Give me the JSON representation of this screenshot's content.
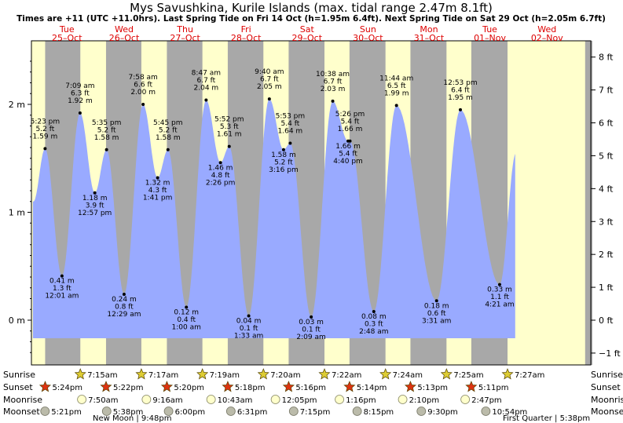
{
  "header": {
    "title": "Mys Savushkina, Kurile Islands (max. tidal range 2.47m 8.1ft)",
    "subtitle": "Times are +11 (UTC +11.0hrs). Last Spring Tide on Fri 14 Oct (h=1.95m 6.4ft). Next Spring Tide on Sat 29 Oct (h=2.05m 6.7ft)"
  },
  "days": [
    {
      "name": "Tue",
      "date": "25–Oct",
      "noon": 26
    },
    {
      "name": "Wed",
      "date": "26–Oct",
      "noon": 48.5
    },
    {
      "name": "Thu",
      "date": "27–Oct",
      "noon": 72.5
    },
    {
      "name": "Fri",
      "date": "28–Oct",
      "noon": 96.5
    },
    {
      "name": "Sat",
      "date": "29–Oct",
      "noon": 120.5
    },
    {
      "name": "Sun",
      "date": "30–Oct",
      "noon": 144.5
    },
    {
      "name": "Mon",
      "date": "31–Oct",
      "noon": 168.5
    },
    {
      "name": "Tue",
      "date": "01–Nov",
      "noon": 192.5
    },
    {
      "name": "Wed",
      "date": "02–Nov",
      "noon": 215
    }
  ],
  "chart_data": {
    "type": "area",
    "x_unit": "hours since 00:00 25-Oct",
    "y_unit": "m",
    "ylim": [
      -0.35,
      2.55
    ],
    "xlim": [
      12,
      220
    ],
    "left_ticks": [
      {
        "v": 0,
        "label": "0 m"
      },
      {
        "v": 1,
        "label": "1 m"
      },
      {
        "v": 2,
        "label": "2 m"
      }
    ],
    "right_ticks": [
      {
        "v": -0.3048,
        "label": "−1 ft"
      },
      {
        "v": 0,
        "label": "0 ft"
      },
      {
        "v": 0.3048,
        "label": "1 ft"
      },
      {
        "v": 0.6096,
        "label": "2 ft"
      },
      {
        "v": 0.9144,
        "label": "3 ft"
      },
      {
        "v": 1.2192,
        "label": "4 ft"
      },
      {
        "v": 1.524,
        "label": "5 ft"
      },
      {
        "v": 1.8288,
        "label": "6 ft"
      },
      {
        "v": 2.1336,
        "label": "7 ft"
      },
      {
        "v": 2.4384,
        "label": "8 ft"
      }
    ],
    "tides": [
      {
        "t": 17.38,
        "h": 1.59,
        "time": "5:23 pm",
        "m": "1.59 m",
        "ft": "5.2 ft",
        "type": "high"
      },
      {
        "t": 24.02,
        "h": 0.41,
        "time": "12:01 am",
        "m": "0.41 m",
        "ft": "1.3 ft",
        "type": "low"
      },
      {
        "t": 31.15,
        "h": 1.92,
        "time": "7:09 am",
        "m": "1.92 m",
        "ft": "6.3 ft",
        "type": "high"
      },
      {
        "t": 36.95,
        "h": 1.18,
        "time": "12:57 pm",
        "m": "1.18 m",
        "ft": "3.9 ft",
        "type": "low"
      },
      {
        "t": 41.58,
        "h": 1.58,
        "time": "5:35 pm",
        "m": "1.58 m",
        "ft": "5.2 ft",
        "type": "high"
      },
      {
        "t": 48.48,
        "h": 0.24,
        "time": "12:29 am",
        "m": "0.24 m",
        "ft": "0.8 ft",
        "type": "low"
      },
      {
        "t": 55.97,
        "h": 2.0,
        "time": "7:58 am",
        "m": "2.00 m",
        "ft": "6.6 ft",
        "type": "high"
      },
      {
        "t": 61.68,
        "h": 1.32,
        "time": "1:41 pm",
        "m": "1.32 m",
        "ft": "4.3 ft",
        "type": "low"
      },
      {
        "t": 65.75,
        "h": 1.58,
        "time": "5:45 pm",
        "m": "1.58 m",
        "ft": "5.2 ft",
        "type": "high"
      },
      {
        "t": 73.0,
        "h": 0.12,
        "time": "1:00 am",
        "m": "0.12 m",
        "ft": "0.4 ft",
        "type": "low"
      },
      {
        "t": 80.78,
        "h": 2.04,
        "time": "8:47 am",
        "m": "2.04 m",
        "ft": "6.7 ft",
        "type": "high"
      },
      {
        "t": 86.43,
        "h": 1.46,
        "time": "2:26 pm",
        "m": "1.46 m",
        "ft": "4.8 ft",
        "type": "low"
      },
      {
        "t": 89.87,
        "h": 1.61,
        "time": "5:52 pm",
        "m": "1.61 m",
        "ft": "5.3 ft",
        "type": "high"
      },
      {
        "t": 97.55,
        "h": 0.04,
        "time": "1:33 am",
        "m": "0.04 m",
        "ft": "0.1 ft",
        "type": "low"
      },
      {
        "t": 105.67,
        "h": 2.05,
        "time": "9:40 am",
        "m": "2.05 m",
        "ft": "6.7 ft",
        "type": "high"
      },
      {
        "t": 111.27,
        "h": 1.58,
        "time": "3:16 pm",
        "m": "1.58 m",
        "ft": "5.2 ft",
        "type": "low"
      },
      {
        "t": 113.88,
        "h": 1.64,
        "time": "5:53 pm",
        "m": "1.64 m",
        "ft": "5.4 ft",
        "type": "high"
      },
      {
        "t": 122.15,
        "h": 0.03,
        "time": "2:09 am",
        "m": "0.03 m",
        "ft": "0.1 ft",
        "type": "low"
      },
      {
        "t": 130.63,
        "h": 2.03,
        "time": "10:38 am",
        "m": "2.03 m",
        "ft": "6.7 ft",
        "type": "high"
      },
      {
        "t": 136.67,
        "h": 1.66,
        "time": "4:40 pm",
        "m": "1.66 m",
        "ft": "5.4 ft",
        "type": "low"
      },
      {
        "t": 137.43,
        "h": 1.66,
        "time": "5:26 pm",
        "m": "1.66 m",
        "ft": "5.4 ft",
        "type": "high"
      },
      {
        "t": 146.8,
        "h": 0.08,
        "time": "2:48 am",
        "m": "0.08 m",
        "ft": "0.3 ft",
        "type": "low"
      },
      {
        "t": 155.73,
        "h": 1.99,
        "time": "11:44 am",
        "m": "1.99 m",
        "ft": "6.5 ft",
        "type": "high"
      },
      {
        "t": 171.52,
        "h": 0.18,
        "time": "3:31 am",
        "m": "0.18 m",
        "ft": "0.6 ft",
        "type": "low"
      },
      {
        "t": 180.88,
        "h": 1.95,
        "time": "12:53 pm",
        "m": "1.95 m",
        "ft": "6.4 ft",
        "type": "high"
      },
      {
        "t": 196.35,
        "h": 0.33,
        "time": "4:21 am",
        "m": "0.33 m",
        "ft": "1.1 ft",
        "type": "low"
      }
    ]
  },
  "astro": {
    "row_labels": [
      "Sunrise",
      "Sunset",
      "Moonrise",
      "Moonset"
    ],
    "sunrise": [
      {
        "t": 31.25,
        "label": "7:15am"
      },
      {
        "t": 55.28,
        "label": "7:17am"
      },
      {
        "t": 79.32,
        "label": "7:19am"
      },
      {
        "t": 103.33,
        "label": "7:20am"
      },
      {
        "t": 127.37,
        "label": "7:22am"
      },
      {
        "t": 151.4,
        "label": "7:24am"
      },
      {
        "t": 175.42,
        "label": "7:25am"
      },
      {
        "t": 199.45,
        "label": "7:27am"
      }
    ],
    "sunset": [
      {
        "t": 17.4,
        "label": "5:24pm"
      },
      {
        "t": 41.37,
        "label": "5:22pm"
      },
      {
        "t": 65.33,
        "label": "5:20pm"
      },
      {
        "t": 89.3,
        "label": "5:18pm"
      },
      {
        "t": 113.27,
        "label": "5:16pm"
      },
      {
        "t": 137.23,
        "label": "5:14pm"
      },
      {
        "t": 161.22,
        "label": "5:13pm"
      },
      {
        "t": 185.18,
        "label": "5:11pm"
      }
    ],
    "moonrise": [
      {
        "t": 31.83,
        "label": "7:50am"
      },
      {
        "t": 57.27,
        "label": "9:16am"
      },
      {
        "t": 82.72,
        "label": "10:43am"
      },
      {
        "t": 108.08,
        "label": "12:05pm"
      },
      {
        "t": 133.27,
        "label": "1:16pm"
      },
      {
        "t": 158.17,
        "label": "2:10pm"
      },
      {
        "t": 182.78,
        "label": "2:47pm"
      }
    ],
    "moonset": [
      {
        "t": 17.35,
        "label": "5:21pm"
      },
      {
        "t": 41.63,
        "label": "5:38pm"
      },
      {
        "t": 66.0,
        "label": "6:00pm"
      },
      {
        "t": 90.52,
        "label": "6:31pm"
      },
      {
        "t": 115.25,
        "label": "7:15pm"
      },
      {
        "t": 140.25,
        "label": "8:15pm"
      },
      {
        "t": 165.5,
        "label": "9:30pm"
      },
      {
        "t": 190.9,
        "label": "10:54pm"
      }
    ],
    "phases": [
      {
        "label": "New Moon | 9:48pm",
        "x": 118
      },
      {
        "label": "First Quarter | 5:38pm",
        "x": 640
      }
    ]
  },
  "colors": {
    "day": "#ffffcc",
    "night": "#a8a8a8",
    "water": "#99aaff",
    "sun": "#ddcc33",
    "sunset": "#dd3311",
    "moon": "#ffffcc",
    "moonset": "#bbbbaa",
    "title_red": "#dd0000"
  }
}
